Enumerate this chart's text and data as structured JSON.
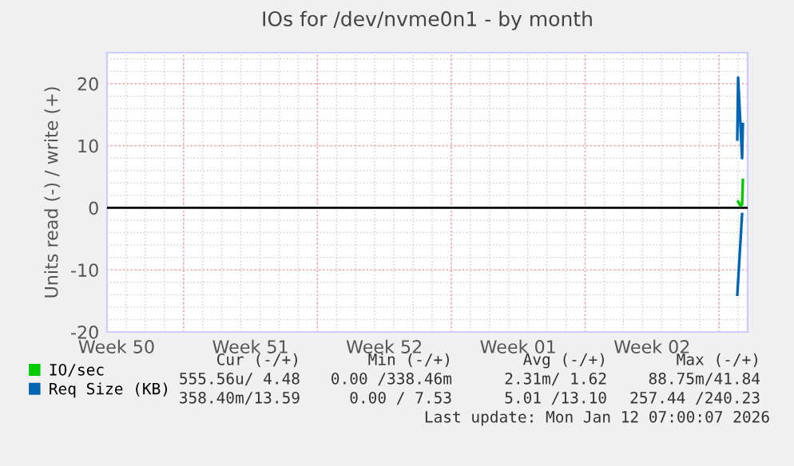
{
  "chart_data": {
    "type": "line",
    "title": "IOs for /dev/nvme0n1 - by month",
    "ylabel": "Units read (-) / write (+)",
    "xlim": [
      "2025-12-11T00:00",
      "2026-01-13T12:00"
    ],
    "ylim": [
      -20,
      25
    ],
    "yticks": [
      -20,
      -10,
      0,
      10,
      20
    ],
    "xticks": [
      {
        "value": "2025-12-11T12:00",
        "label": "Week 50"
      },
      {
        "value": "2025-12-18T12:00",
        "label": "Week 51"
      },
      {
        "value": "2025-12-25T12:00",
        "label": "Week 52"
      },
      {
        "value": "2026-01-01T12:00",
        "label": "Week 01"
      },
      {
        "value": "2026-01-08T12:00",
        "label": "Week 02"
      },
      {
        "value": "2025-12-15",
        "label": null
      },
      {
        "value": "2025-12-22",
        "label": null
      },
      {
        "value": "2025-12-29",
        "label": null
      },
      {
        "value": "2026-01-05",
        "label": null
      },
      {
        "value": "2026-01-12",
        "label": null
      }
    ],
    "ref_lines": [
      {
        "axis": "y",
        "value": 0,
        "color": "#000000"
      }
    ],
    "grid": true,
    "legend": "bottom left",
    "series": [
      {
        "name": "IO/sec",
        "color": "#00cc00",
        "x": [
          "2026-01-13T00:00",
          "2026-01-13T01:00",
          "2026-01-13T03:00",
          "2026-01-13T05:00",
          "2026-01-13T06:00"
        ],
        "values": [
          1,
          0.8,
          0.3,
          0.5,
          4.5
        ]
      },
      {
        "name": "Req Size (KB)",
        "color": "#0066b3",
        "x": [
          "2026-01-12T23:00",
          "2026-01-13T00:00",
          "2026-01-13T05:00",
          "2026-01-13T06:00"
        ],
        "values": [
          11,
          21,
          8,
          13.5
        ]
      },
      {
        "color": "#0066b3",
        "x": [
          "2026-01-12T23:00",
          "2026-01-13T05:00"
        ],
        "values": [
          -14,
          -1
        ]
      }
    ],
    "annotations": [
      "Cur (-/+)",
      "Min (-/+)",
      "Avg (-/+)",
      "Max (-/+)",
      "555.56u/ 4.48",
      "0.00 /338.46m",
      "2.31m/ 1.62",
      "88.75m/41.84",
      "358.40m/13.59",
      "0.00 / 7.53",
      "5.01 /13.10",
      "257.44 /240.23",
      "Last update: Mon Jan 12 07:00:07 2026"
    ]
  }
}
